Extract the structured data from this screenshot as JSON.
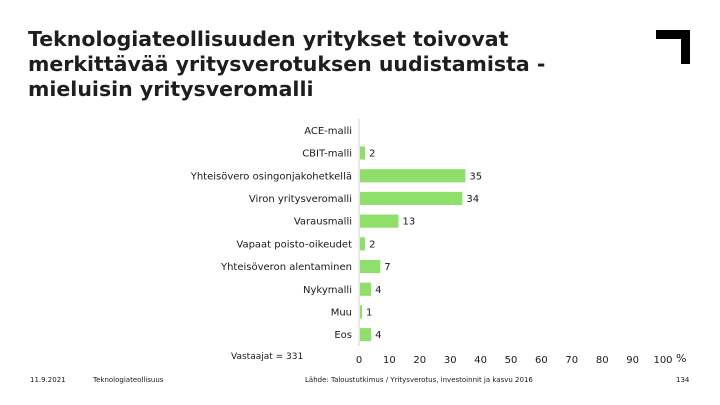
{
  "header": {
    "title_lines": [
      "Teknologiateollisuuden yritykset toivovat",
      "merkittävää yritysverotuksen uudistamista -",
      "mieluisin yritysveromalli"
    ]
  },
  "logo": {
    "icon": "corner-bracket-logo-icon"
  },
  "chart_data": {
    "type": "bar",
    "orientation": "horizontal",
    "title": "",
    "xlabel": "",
    "ylabel": "",
    "unit": "%",
    "xlim": [
      0,
      100
    ],
    "xticks": [
      0,
      10,
      20,
      30,
      40,
      50,
      60,
      70,
      80,
      90,
      100
    ],
    "categories": [
      "ACE-malli",
      "CBIT-malli",
      "Yhteisövero osingonjakohetkellä",
      "Viron yritysveromalli",
      "Varausmalli",
      "Vapaat poisto-oikeudet",
      "Yhteisöveron alentaminen",
      "Nykymalli",
      "Muu",
      "Eos"
    ],
    "values": [
      0,
      2,
      35,
      34,
      13,
      2,
      7,
      4,
      1,
      4
    ],
    "value_labels": [
      "",
      "2",
      "35",
      "34",
      "13",
      "2",
      "7",
      "4",
      "1",
      "4"
    ],
    "bar_color": "#8ee06a",
    "grid": false,
    "legend": "none"
  },
  "respondents": "Vastaajat = 331",
  "footer": {
    "date": "11.9.2021",
    "organization": "Teknologiateollisuus",
    "source": "Lähde: Taloustutkimus / Yritysverotus, investoinnit ja kasvu 2016",
    "page_number": "134"
  }
}
